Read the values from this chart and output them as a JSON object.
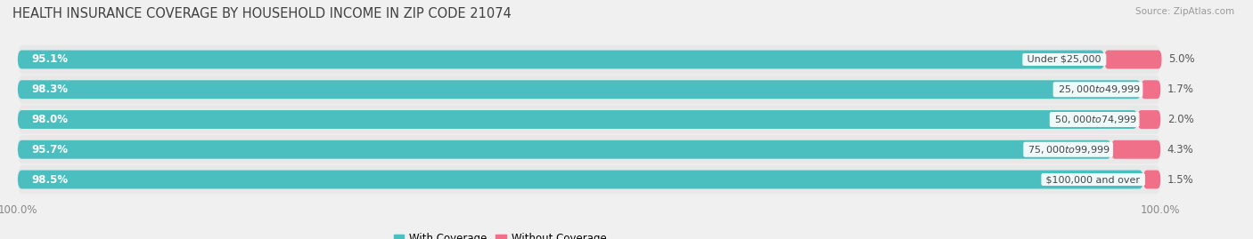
{
  "title": "HEALTH INSURANCE COVERAGE BY HOUSEHOLD INCOME IN ZIP CODE 21074",
  "source": "Source: ZipAtlas.com",
  "categories": [
    "Under $25,000",
    "$25,000 to $49,999",
    "$50,000 to $74,999",
    "$75,000 to $99,999",
    "$100,000 and over"
  ],
  "with_coverage": [
    95.1,
    98.3,
    98.0,
    95.7,
    98.5
  ],
  "without_coverage": [
    5.0,
    1.7,
    2.0,
    4.3,
    1.5
  ],
  "color_with": "#4BBFBF",
  "color_without": "#F0708A",
  "color_without_row1": "#F07090",
  "bg_color": "#F0F0F0",
  "bar_bg_color": "#E2E2E2",
  "title_fontsize": 10.5,
  "label_fontsize": 8.5,
  "tick_fontsize": 8.5,
  "legend_fontsize": 8.5,
  "bar_height": 0.62
}
